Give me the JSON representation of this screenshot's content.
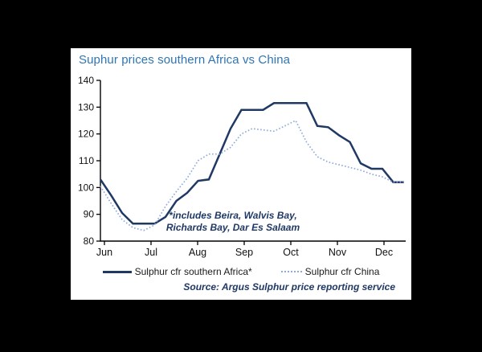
{
  "title": "Suphur prices southern Africa vs China",
  "annotation": {
    "line1": "*includes Beira, Walvis Bay,",
    "line2": "Richards Bay, Dar Es Salaam"
  },
  "source": "Source: Argus Sulphur price reporting service",
  "colors": {
    "background": "#000000",
    "panel": "#ffffff",
    "title_blue": "#2E75B6",
    "africa_line": "#1F3864",
    "china_line": "#8FAADC",
    "axis": "#000000",
    "annotation_text": "#1F3864",
    "source_text": "#1F3864"
  },
  "chart_data": {
    "type": "line",
    "title": "Suphur prices southern Africa vs China",
    "xlabel": "",
    "ylabel": "",
    "x_axis": {
      "tick_labels": [
        "Jun",
        "Jul",
        "Aug",
        "Sep",
        "Oct",
        "Nov",
        "Dec"
      ],
      "note": "weekly price points from June to December"
    },
    "y_axis": {
      "min": 80,
      "max": 140,
      "ticks": [
        140,
        130,
        120,
        110,
        100,
        90,
        80
      ]
    },
    "grid": false,
    "legend_position": "bottom",
    "series": [
      {
        "name": "Sulphur cfr southern Africa*",
        "color": "#1F3864",
        "line_style": "solid",
        "values": [
          103,
          97,
          90.5,
          86.5,
          86.5,
          86.5,
          89,
          95,
          98,
          102.5,
          103,
          112.5,
          122,
          129,
          129,
          129,
          131.5,
          131.5,
          131.5,
          131.5,
          123,
          122.5,
          119.5,
          117,
          109,
          107,
          107,
          102,
          102
        ]
      },
      {
        "name": "Sulphur cfr China",
        "color": "#8FAADC",
        "line_style": "dotted",
        "values": [
          100.5,
          94,
          88,
          85,
          84,
          86,
          93,
          98.5,
          103.5,
          110,
          112.5,
          112.5,
          115,
          120,
          122,
          121.5,
          121,
          123,
          125,
          117,
          111.5,
          109.5,
          108.5,
          107.5,
          106.5,
          105,
          104,
          102,
          102
        ]
      }
    ]
  }
}
